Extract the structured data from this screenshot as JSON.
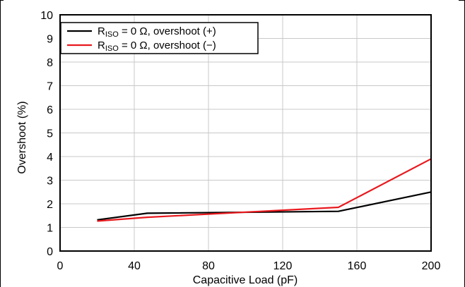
{
  "chart_data": {
    "type": "line",
    "xlabel": "Capacitive Load (pF)",
    "ylabel": "Overshoot (%)",
    "xlim": [
      0,
      200
    ],
    "ylim": [
      0,
      10
    ],
    "xticks": [
      0,
      40,
      80,
      120,
      160,
      200
    ],
    "yticks": [
      0,
      1,
      2,
      3,
      4,
      5,
      6,
      7,
      8,
      9,
      10
    ],
    "grid": true,
    "legend_position": "top-left",
    "series": [
      {
        "name_main": "R",
        "name_sub": "ISO",
        "name_rest": " = 0 Ω, overshoot (+)",
        "color": "#000000",
        "x": [
          20,
          47,
          150,
          200
        ],
        "y": [
          1.32,
          1.6,
          1.68,
          2.5
        ]
      },
      {
        "name_main": "R",
        "name_sub": "ISO",
        "name_rest": " = 0 Ω, overshoot (−)",
        "color": "#e8191e",
        "x": [
          20,
          47,
          150,
          200
        ],
        "y": [
          1.27,
          1.43,
          1.85,
          3.9
        ]
      }
    ]
  }
}
